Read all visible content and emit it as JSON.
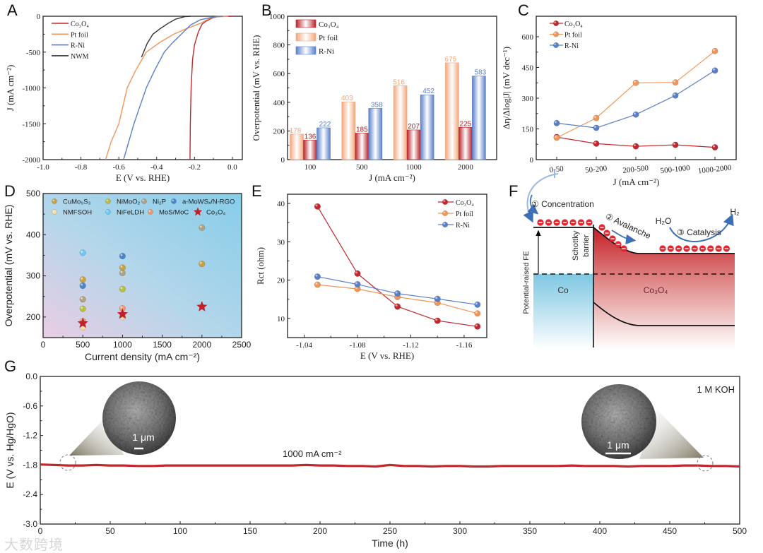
{
  "panels": [
    "A",
    "B",
    "C",
    "D",
    "E",
    "F",
    "G"
  ],
  "watermark": "大数跨境",
  "chart_data": [
    {
      "panel": "A",
      "type": "line",
      "xlabel": "E (V vs. RHE)",
      "ylabel": "J (mA cm⁻²)",
      "xlim": [
        -1.0,
        0.0526
      ],
      "ylim": [
        -2000,
        0
      ],
      "xticks": [
        "-1.0",
        "-0.8",
        "-0.6",
        "-0.4",
        "-0.2",
        "0.0"
      ],
      "yticks": [
        "0",
        "-500",
        "-1000",
        "-1500",
        "-2000"
      ],
      "legend": "top-left",
      "series": [
        {
          "name": "Co₃O₄",
          "color": "#c0282d",
          "x": [
            0.0,
            -0.08,
            -0.11,
            -0.14,
            -0.16,
            -0.18,
            -0.2,
            -0.21,
            -0.218,
            -0.222,
            -0.224
          ],
          "y": [
            0,
            -5,
            -30,
            -70,
            -110,
            -220,
            -400,
            -600,
            -1000,
            -1500,
            -2000
          ]
        },
        {
          "name": "Pt foil",
          "color": "#f0965a",
          "x": [
            -0.02,
            -0.08,
            -0.12,
            -0.17,
            -0.24,
            -0.31,
            -0.38,
            -0.455,
            -0.51,
            -0.556,
            -0.6,
            -0.64,
            -0.67
          ],
          "y": [
            0,
            -5,
            -30,
            -100,
            -170,
            -250,
            -360,
            -500,
            -750,
            -1000,
            -1500,
            -1750,
            -2000
          ]
        },
        {
          "name": "R-Ni",
          "color": "#5a7fc8",
          "x": [
            -0.05,
            -0.1,
            -0.17,
            -0.22,
            -0.27,
            -0.32,
            -0.36,
            -0.41,
            -0.455,
            -0.52,
            -0.575
          ],
          "y": [
            0,
            -10,
            -50,
            -120,
            -250,
            -380,
            -500,
            -750,
            -1000,
            -1500,
            -2000
          ]
        },
        {
          "name": "NWM",
          "color": "#333333",
          "x": [
            -0.22,
            -0.25,
            -0.3,
            -0.34,
            -0.38,
            -0.42,
            -0.45,
            -0.48
          ],
          "y": [
            0,
            -5,
            -40,
            -100,
            -170,
            -250,
            -380,
            -570
          ]
        }
      ]
    },
    {
      "panel": "B",
      "type": "bar",
      "xlabel": "J (mA cm⁻²)",
      "ylabel": "Overpotential (mV vs. RHE)",
      "ylim": [
        0,
        1000
      ],
      "yticks": [
        "0",
        "200",
        "400",
        "600",
        "800",
        "1000"
      ],
      "categories": [
        "100",
        "500",
        "1000",
        "2000"
      ],
      "legend": "top-left",
      "series": [
        {
          "name": "Co₃O₄",
          "color": "#b8232a",
          "values": [
            136,
            185,
            207,
            225
          ]
        },
        {
          "name": "Pt foil",
          "color": "#f2a77c",
          "values": [
            178,
            403,
            516,
            675
          ]
        },
        {
          "name": "R-Ni",
          "color": "#5a7fc8",
          "values": [
            222,
            358,
            452,
            583
          ]
        }
      ],
      "bar_order": [
        "Pt foil",
        "Co₃O₄",
        "R-Ni"
      ]
    },
    {
      "panel": "C",
      "type": "line",
      "xlabel": "J (mA cm⁻²)",
      "ylabel": "Δη/Δlog|J| (mV dec⁻¹)",
      "ylim": [
        0,
        700
      ],
      "yticks": [
        "0",
        "150",
        "300",
        "450",
        "600"
      ],
      "categories": [
        "0-50",
        "50-200",
        "200-500",
        "500-1000",
        "1000-2000"
      ],
      "legend": "top-left",
      "series": [
        {
          "name": "Co₃O₄",
          "color": "#c0282d",
          "values": [
            110,
            78,
            65,
            72,
            60
          ]
        },
        {
          "name": "Pt foil",
          "color": "#f0965a",
          "values": [
            107,
            203,
            375,
            377,
            530
          ]
        },
        {
          "name": "R-Ni",
          "color": "#5a7fc8",
          "values": [
            178,
            155,
            220,
            313,
            435
          ]
        }
      ]
    },
    {
      "panel": "D",
      "type": "scatter",
      "xlabel": "Current density (mA cm⁻²)",
      "ylabel": "Overpotential (mV vs. RHE)",
      "xlim": [
        0,
        2500
      ],
      "ylim": [
        150,
        500
      ],
      "xticks": [
        "0",
        "500",
        "1000",
        "1500",
        "2000",
        "2500"
      ],
      "yticks": [
        "200",
        "300",
        "400",
        "500"
      ],
      "legend": "top",
      "series": [
        {
          "name": "CuMo₉S₃",
          "color": "#c9a23e",
          "marker": "circle",
          "points": [
            [
              500,
              291
            ],
            [
              1000,
              320
            ],
            [
              2000,
              329
            ]
          ]
        },
        {
          "name": "NiMoO₂",
          "color": "#b9c03e",
          "marker": "circle",
          "points": [
            [
              500,
              220
            ],
            [
              1000,
              268
            ]
          ]
        },
        {
          "name": "Ni₂P",
          "color": "#b0a283",
          "marker": "circle",
          "points": [
            [
              500,
              243
            ],
            [
              1000,
              307
            ],
            [
              2000,
              417
            ]
          ]
        },
        {
          "name": "a-MoWSₓ/N-RGO",
          "color": "#4a86cc",
          "marker": "circle",
          "points": [
            [
              500,
              276
            ],
            [
              1000,
              348
            ]
          ]
        },
        {
          "name": "NMFSOH",
          "color": "#f3dca6",
          "marker": "circle",
          "points": [
            [
              500,
              175
            ],
            [
              1000,
              200
            ]
          ]
        },
        {
          "name": "NiFeLDH",
          "color": "#6ccaf0",
          "marker": "circle",
          "points": [
            [
              500,
              356
            ]
          ]
        },
        {
          "name": "MoS/MoC",
          "color": "#f29a6a",
          "marker": "circle",
          "points": [
            [
              500,
              190
            ],
            [
              1000,
              221
            ]
          ]
        },
        {
          "name": "Co₃O₄",
          "color": "#c0202a",
          "marker": "star",
          "points": [
            [
              500,
              185
            ],
            [
              1000,
              207
            ],
            [
              2000,
              225
            ]
          ]
        }
      ]
    },
    {
      "panel": "E",
      "type": "line",
      "xlabel": "E (V vs. RHE)",
      "ylabel": "Rct (ohm)",
      "xlim": [
        -1.0275,
        -1.177
      ],
      "ylim": [
        5,
        42.4
      ],
      "xticks": [
        "-1.04",
        "-1.08",
        "-1.12",
        "-1.16"
      ],
      "yticks": [
        "10",
        "20",
        "30",
        "40"
      ],
      "legend": "top-right",
      "x": [
        -1.05,
        -1.08,
        -1.11,
        -1.14,
        -1.17
      ],
      "series": [
        {
          "name": "Co₃O₄",
          "color": "#c0282d",
          "values": [
            39.2,
            21.7,
            13.1,
            9.4,
            7.9
          ]
        },
        {
          "name": "Pt foil",
          "color": "#f0965a",
          "values": [
            18.8,
            17.7,
            15.6,
            14.1,
            11.3
          ]
        },
        {
          "name": "R-Ni",
          "color": "#5a7fc8",
          "values": [
            20.9,
            18.9,
            16.5,
            15.1,
            13.6
          ]
        }
      ]
    },
    {
      "panel": "G",
      "type": "line",
      "xlabel": "Time (h)",
      "ylabel": "E (V vs. Hg/HgO)",
      "xlim": [
        0,
        500
      ],
      "ylim": [
        -3.0,
        0.0
      ],
      "xticks": [
        "0",
        "50",
        "100",
        "150",
        "200",
        "250",
        "300",
        "350",
        "400",
        "450",
        "500"
      ],
      "yticks": [
        "0.0",
        "-0.6",
        "-1.2",
        "-1.8",
        "-2.4",
        "-3.0"
      ],
      "annotations": {
        "current": "1000 mA cm⁻²",
        "electrolyte": "1 M KOH",
        "scale_left": "1 μm",
        "scale_right": "1 μm"
      },
      "series": [
        {
          "name": "Co₃O₄",
          "color": "#c0282d",
          "x_start": 0,
          "x_step": 10,
          "values": [
            -1.79,
            -1.8,
            -1.81,
            -1.81,
            -1.8,
            -1.81,
            -1.81,
            -1.82,
            -1.82,
            -1.81,
            -1.81,
            -1.81,
            -1.81,
            -1.81,
            -1.81,
            -1.81,
            -1.81,
            -1.81,
            -1.81,
            -1.8,
            -1.81,
            -1.81,
            -1.82,
            -1.82,
            -1.83,
            -1.8,
            -1.82,
            -1.82,
            -1.83,
            -1.82,
            -1.82,
            -1.83,
            -1.83,
            -1.82,
            -1.82,
            -1.82,
            -1.82,
            -1.82,
            -1.81,
            -1.82,
            -1.82,
            -1.82,
            -1.83,
            -1.82,
            -1.82,
            -1.82,
            -1.81,
            -1.81,
            -1.82,
            -1.82,
            -1.83
          ]
        }
      ]
    }
  ],
  "diagram_f": {
    "step1": "① Concentration",
    "step2": "② Avalanche",
    "step3": "③ Catalysis",
    "h2o": "H₂O",
    "h2": "H₂",
    "fe_label": "Potential-raised FE",
    "barrier_label1": "Schottky",
    "barrier_label2": "barrier",
    "metal": "Co",
    "semiconductor": "Co₃O₄",
    "electron_symbol": "−"
  }
}
